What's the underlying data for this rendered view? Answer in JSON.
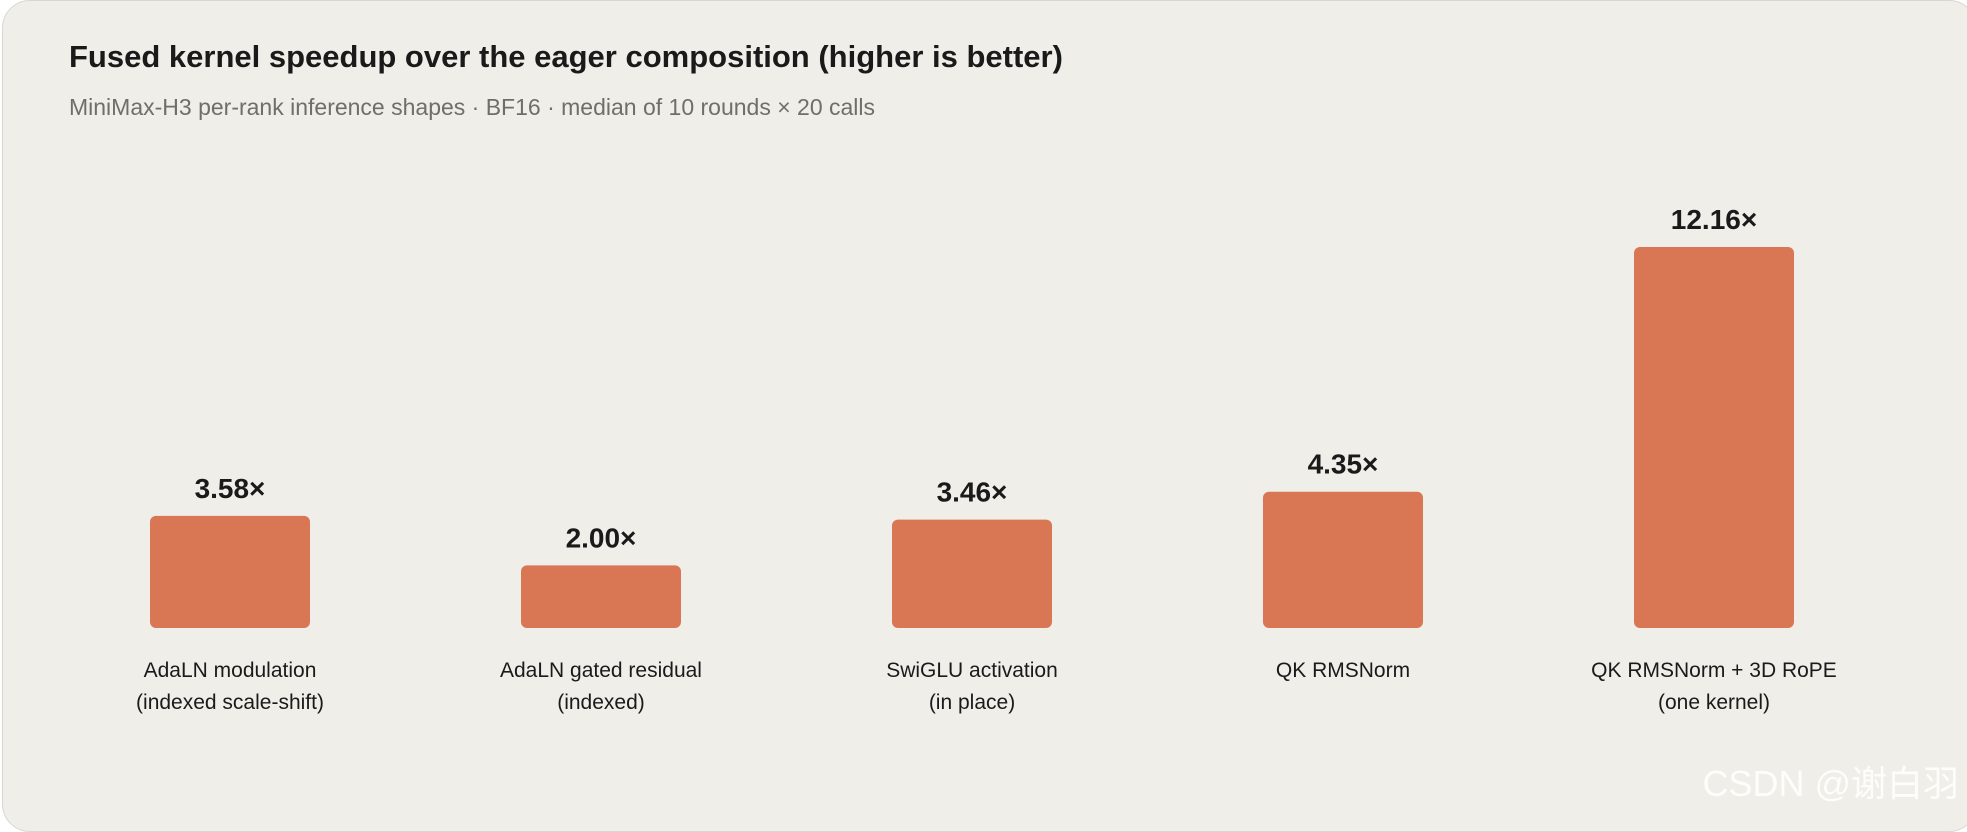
{
  "header": {
    "title": "Fused kernel speedup over the eager composition (higher is better)",
    "subtitle": "MiniMax-H3 per-rank inference shapes · BF16 · median of 10 rounds × 20 calls"
  },
  "watermark": "CSDN @谢白羽",
  "colors": {
    "bar": "#d97755",
    "background": "#efeee8",
    "text": "#1a1a1a",
    "subtext": "#6f6e6a"
  },
  "chart_data": {
    "type": "bar",
    "title": "Fused kernel speedup over the eager composition (higher is better)",
    "subtitle": "MiniMax-H3 per-rank inference shapes · BF16 · median of 10 rounds × 20 calls",
    "categories": [
      [
        "AdaLN modulation",
        "(indexed scale-shift)"
      ],
      [
        "AdaLN gated residual",
        "(indexed)"
      ],
      [
        "SwiGLU activation",
        "(in place)"
      ],
      [
        "QK RMSNorm"
      ],
      [
        "QK RMSNorm + 3D RoPE",
        "(one kernel)"
      ]
    ],
    "values": [
      3.58,
      2.0,
      3.46,
      4.35,
      12.16
    ],
    "value_labels": [
      "3.58×",
      "2.00×",
      "3.46×",
      "4.35×",
      "12.16×"
    ],
    "xlabel": "",
    "ylabel": "",
    "ylim": [
      0,
      12.16
    ],
    "grid": false,
    "legend": "none"
  }
}
